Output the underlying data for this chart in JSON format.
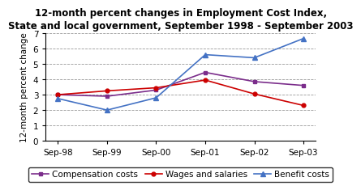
{
  "title": "12-month percent changes in Employment Cost Index,\nState and local government, September 1998 - September 2003",
  "ylabel": "12-month percent change",
  "x_labels": [
    "Sep-98",
    "Sep-99",
    "Sep-00",
    "Sep-01",
    "Sep-02",
    "Sep-03"
  ],
  "compensation_costs": [
    3.0,
    2.9,
    3.3,
    4.45,
    3.85,
    3.6
  ],
  "wages_and_salaries": [
    3.0,
    3.25,
    3.45,
    3.95,
    3.05,
    2.3
  ],
  "benefit_costs": [
    2.75,
    2.0,
    2.8,
    5.6,
    5.4,
    6.65
  ],
  "compensation_color": "#7B2D8B",
  "wages_color": "#CC0000",
  "benefit_color": "#4472C4",
  "ylim": [
    0,
    7
  ],
  "yticks": [
    0,
    1,
    2,
    3,
    4,
    5,
    6,
    7
  ],
  "background_color": "#FFFFFF",
  "title_fontsize": 8.5,
  "legend_fontsize": 7.5,
  "axis_fontsize": 7.5,
  "ylabel_fontsize": 7.5
}
